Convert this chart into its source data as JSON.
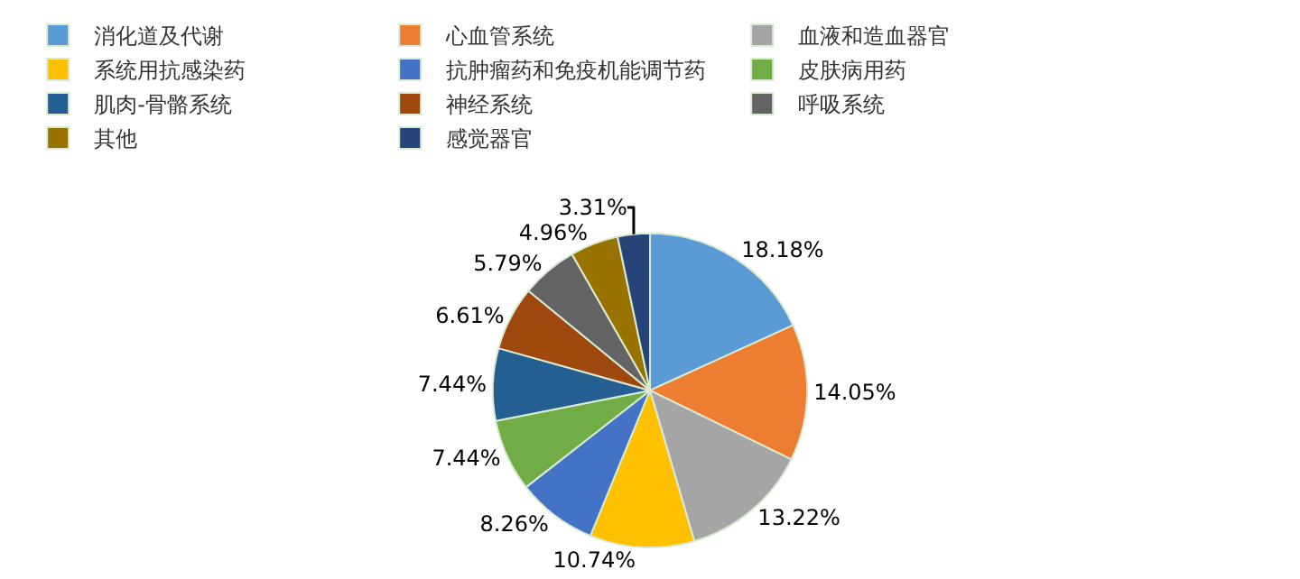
{
  "chart_data": {
    "type": "pie",
    "categories": [
      "消化道及代谢",
      "心血管系统",
      "血液和造血器官",
      "系统用抗感染药",
      "抗肿瘤药和免疫机能调节药",
      "皮肤病用药",
      "肌肉-骨骼系统",
      "神经系统",
      "呼吸系统",
      "其他",
      "感觉器官"
    ],
    "values": [
      18.18,
      14.05,
      13.22,
      10.74,
      8.26,
      7.44,
      7.44,
      6.61,
      5.79,
      4.96,
      3.31
    ],
    "colors": [
      "#5b9bd5",
      "#ed7d31",
      "#a5a5a5",
      "#ffc000",
      "#4472c4",
      "#70ad47",
      "#255e91",
      "#9e480e",
      "#636363",
      "#997300",
      "#264478"
    ],
    "value_labels": [
      "18.18%",
      "14.05%",
      "13.22%",
      "10.74%",
      "8.26%",
      "7.44%",
      "7.44%",
      "6.61%",
      "5.79%",
      "4.96%",
      "3.31%"
    ],
    "legend": "top"
  }
}
